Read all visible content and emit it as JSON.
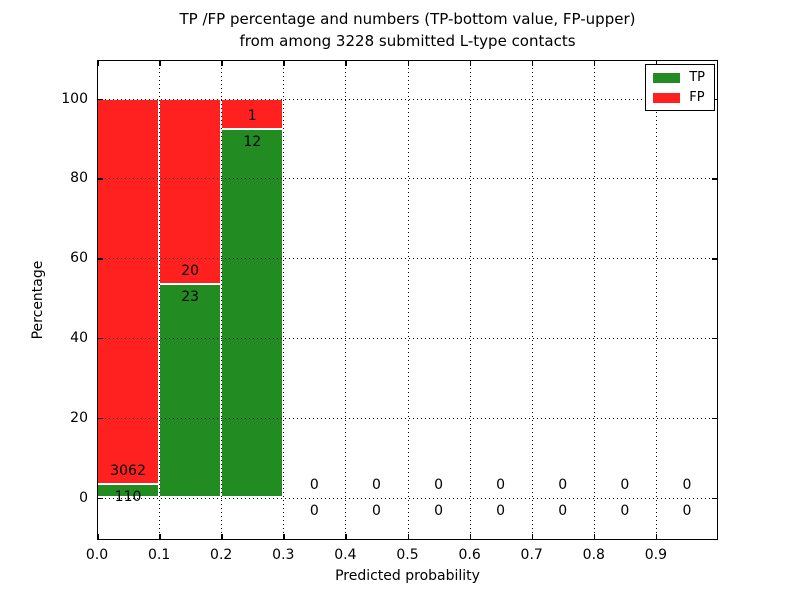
{
  "title": {
    "line1": "TP /FP percentage and numbers (TP-bottom value, FP-upper)",
    "line2": "from among 3228 submitted L-type contacts"
  },
  "axes": {
    "xlabel": "Predicted probability",
    "ylabel": "Percentage",
    "x_tick_labels": [
      "0.0",
      "0.1",
      "0.2",
      "0.3",
      "0.4",
      "0.5",
      "0.6",
      "0.7",
      "0.8",
      "0.9"
    ],
    "y_tick_labels": [
      "0",
      "20",
      "40",
      "60",
      "80",
      "100"
    ]
  },
  "legend": {
    "items": [
      {
        "label": "TP",
        "color": "#228b22"
      },
      {
        "label": "FP",
        "color": "#ff2020"
      }
    ]
  },
  "colors": {
    "tp": "#228b22",
    "fp": "#ff2020",
    "grid": "#000000",
    "bar_edge": "#ffffff",
    "background": "#ffffff"
  },
  "chart_data": {
    "type": "bar",
    "stacked": true,
    "title": "TP /FP percentage and numbers (TP-bottom value, FP-upper) from among 3228 submitted L-type contacts",
    "xlabel": "Predicted probability",
    "ylabel": "Percentage",
    "xlim": [
      0.0,
      1.0
    ],
    "ylim": [
      -11,
      110
    ],
    "grid": true,
    "grid_style": "dotted",
    "legend_position": "upper right",
    "total_contacts": 3228,
    "bin_width": 0.1,
    "x_ticks": [
      0.0,
      0.1,
      0.2,
      0.3,
      0.4,
      0.5,
      0.6,
      0.7,
      0.8,
      0.9
    ],
    "y_ticks": [
      0,
      20,
      40,
      60,
      80,
      100
    ],
    "categories": [
      "0.0-0.1",
      "0.1-0.2",
      "0.2-0.3",
      "0.3-0.4",
      "0.4-0.5",
      "0.5-0.6",
      "0.6-0.7",
      "0.7-0.8",
      "0.8-0.9",
      "0.9-1.0"
    ],
    "series": [
      {
        "name": "TP",
        "color": "#228b22",
        "counts": [
          110,
          23,
          12,
          0,
          0,
          0,
          0,
          0,
          0,
          0
        ],
        "values_pct": [
          3.47,
          53.49,
          92.31,
          0,
          0,
          0,
          0,
          0,
          0,
          0
        ]
      },
      {
        "name": "FP",
        "color": "#ff2020",
        "counts": [
          3062,
          20,
          1,
          0,
          0,
          0,
          0,
          0,
          0,
          0
        ],
        "values_pct": [
          96.53,
          46.51,
          7.69,
          0,
          0,
          0,
          0,
          0,
          0,
          0
        ]
      }
    ],
    "bins": [
      {
        "x_start": 0.0,
        "x_end": 0.1,
        "tp_count": 110,
        "fp_count": 3062,
        "tp_pct": 3.47,
        "fp_pct": 96.53
      },
      {
        "x_start": 0.1,
        "x_end": 0.2,
        "tp_count": 23,
        "fp_count": 20,
        "tp_pct": 53.49,
        "fp_pct": 46.51
      },
      {
        "x_start": 0.2,
        "x_end": 0.3,
        "tp_count": 12,
        "fp_count": 1,
        "tp_pct": 92.31,
        "fp_pct": 7.69
      },
      {
        "x_start": 0.3,
        "x_end": 0.4,
        "tp_count": 0,
        "fp_count": 0,
        "tp_pct": 0,
        "fp_pct": 0
      },
      {
        "x_start": 0.4,
        "x_end": 0.5,
        "tp_count": 0,
        "fp_count": 0,
        "tp_pct": 0,
        "fp_pct": 0
      },
      {
        "x_start": 0.5,
        "x_end": 0.6,
        "tp_count": 0,
        "fp_count": 0,
        "tp_pct": 0,
        "fp_pct": 0
      },
      {
        "x_start": 0.6,
        "x_end": 0.7,
        "tp_count": 0,
        "fp_count": 0,
        "tp_pct": 0,
        "fp_pct": 0
      },
      {
        "x_start": 0.7,
        "x_end": 0.8,
        "tp_count": 0,
        "fp_count": 0,
        "tp_pct": 0,
        "fp_pct": 0
      },
      {
        "x_start": 0.8,
        "x_end": 0.9,
        "tp_count": 0,
        "fp_count": 0,
        "tp_pct": 0,
        "fp_pct": 0
      },
      {
        "x_start": 0.9,
        "x_end": 1.0,
        "tp_count": 0,
        "fp_count": 0,
        "tp_pct": 0,
        "fp_pct": 0
      }
    ]
  }
}
